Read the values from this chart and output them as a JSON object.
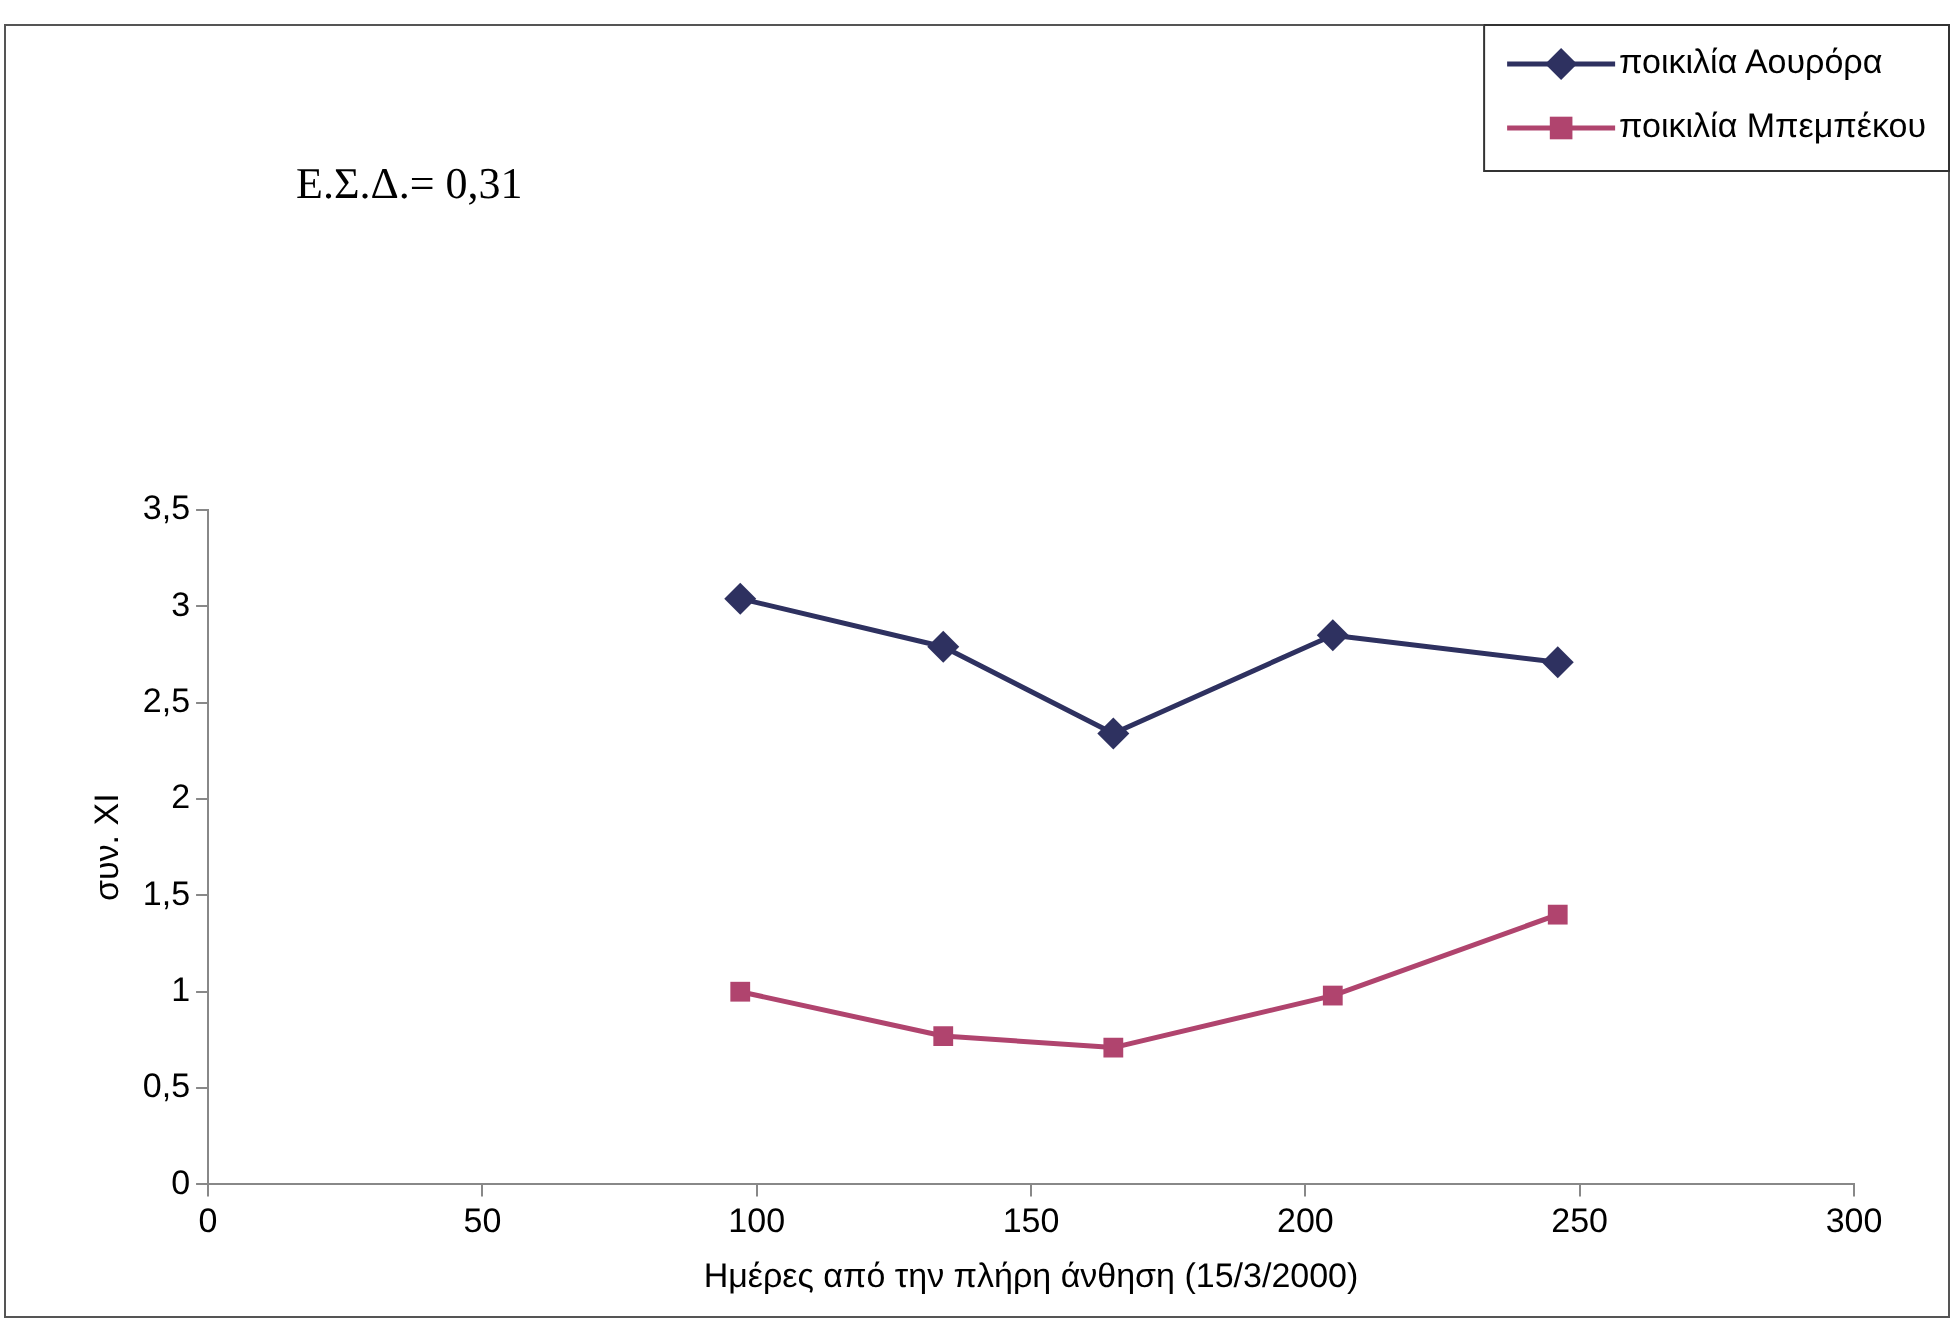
{
  "chart_data": {
    "type": "line",
    "xlabel": "Ημέρες από την πλήρη άνθηση (15/3/2000)",
    "ylabel": "συν. XI",
    "annotations": [
      "Ε.Σ.Δ.= 0,31"
    ],
    "x": [
      97,
      134,
      165,
      205,
      246
    ],
    "series": [
      {
        "name": "ποικιλία Αουρόρα",
        "color": "#2e3160",
        "marker": "diamond",
        "values": [
          3.04,
          2.79,
          2.34,
          2.85,
          2.71
        ]
      },
      {
        "name": "ποικιλία Μπεμπέκου",
        "color": "#b0446e",
        "marker": "square",
        "values": [
          1.0,
          0.77,
          0.71,
          0.98,
          1.4
        ]
      }
    ],
    "xlim": [
      0,
      300
    ],
    "xticks": [
      0,
      50,
      100,
      150,
      200,
      250,
      300
    ],
    "ylim": [
      0,
      3.5
    ],
    "yticks": [
      0,
      {
        "value": 0.5,
        "label": "0,5"
      },
      1,
      {
        "value": 1.5,
        "label": "1,5"
      },
      2,
      {
        "value": 2.5,
        "label": "2,5"
      },
      3,
      {
        "value": 3.5,
        "label": "3,5"
      }
    ],
    "grid": false,
    "legend": "top right",
    "line_style": "solid"
  }
}
